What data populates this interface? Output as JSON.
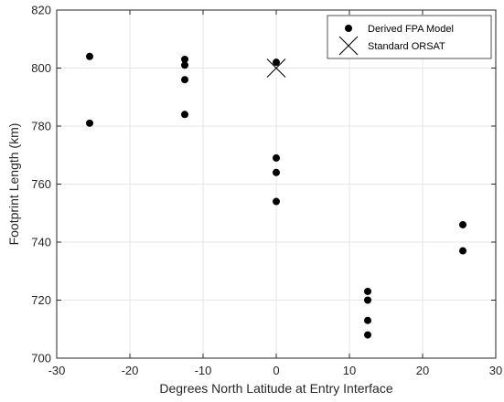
{
  "chart_data": {
    "type": "scatter",
    "xlabel": "Degrees North Latitude at Entry Interface",
    "ylabel": "Footprint Length (km)",
    "xlim": [
      -30,
      30
    ],
    "ylim": [
      700,
      820
    ],
    "xticks": [
      -30,
      -20,
      -10,
      0,
      10,
      20,
      30
    ],
    "yticks": [
      700,
      720,
      740,
      760,
      780,
      800,
      820
    ],
    "grid": true,
    "legend_position": "top-right",
    "series": [
      {
        "name": "Derived FPA Model",
        "marker": "filled-circle",
        "color": "#000000",
        "points": [
          [
            -25.5,
            804
          ],
          [
            -25.5,
            781
          ],
          [
            -12.5,
            803
          ],
          [
            -12.5,
            801
          ],
          [
            -12.5,
            796
          ],
          [
            -12.5,
            784
          ],
          [
            0,
            802
          ],
          [
            0,
            769
          ],
          [
            0,
            764
          ],
          [
            0,
            754
          ],
          [
            12.5,
            723
          ],
          [
            12.5,
            720
          ],
          [
            12.5,
            713
          ],
          [
            12.5,
            708
          ],
          [
            25.5,
            746
          ],
          [
            25.5,
            737
          ]
        ]
      },
      {
        "name": "Standard ORSAT",
        "marker": "x",
        "color": "#000000",
        "points": [
          [
            0,
            800
          ]
        ]
      }
    ]
  }
}
